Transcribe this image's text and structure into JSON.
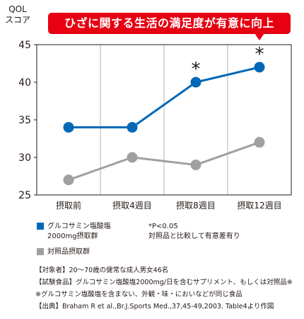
{
  "chart_data": {
    "type": "line",
    "title": "ひざに関する生活の満足度が有意に向上",
    "ylabel_lines": [
      "QOL",
      "スコア"
    ],
    "categories": [
      "摂取前",
      "摂取4週目",
      "摂取8週目",
      "摂取12週目"
    ],
    "ylim": [
      25,
      45
    ],
    "yticks": [
      25,
      30,
      35,
      40,
      45
    ],
    "grid": "vertical",
    "series": [
      {
        "name": "グルコサミン塩酸塩2000mg摂取群",
        "name_lines": [
          "グルコサミン塩酸塩",
          "2000mg摂取群"
        ],
        "color": "#0068b7",
        "values": [
          34,
          34,
          40,
          42
        ],
        "significance_marks": [
          "",
          "",
          "*",
          "*"
        ]
      },
      {
        "name": "対照品摂取群",
        "name_lines": [
          "対照品摂取群"
        ],
        "color": "#9fa0a0",
        "values": [
          27,
          30,
          29,
          32
        ],
        "significance_marks": [
          "",
          "",
          "",
          ""
        ]
      }
    ],
    "note_lines": [
      "*P<0.05",
      "対照品と比較して有意差有り"
    ],
    "footnotes": [
      "【対象者】20～70歳の健常な成人男女46名",
      "【試験食品】グルコサミン塩酸塩2000mg/日を含むサプリメント、もしくは対照品※",
      "※グルコサミン塩酸塩を含まない、外観・味・においなどが同じ食品",
      "【出典】Braham R et al.,Br.J.Sports Med.,37,45-49,2003. Table4より作図"
    ]
  }
}
